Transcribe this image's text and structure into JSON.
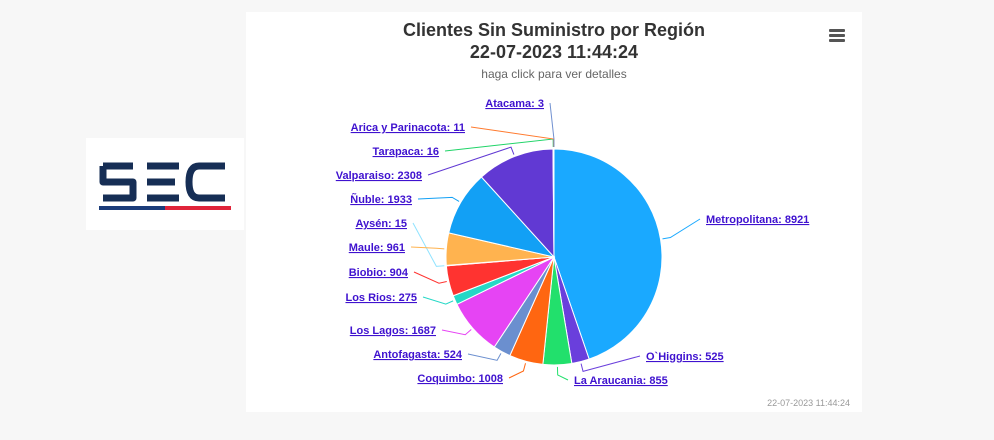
{
  "logo": {
    "text": "SEC"
  },
  "chart_data": {
    "type": "pie",
    "title": "Clientes Sin Suministro por Región",
    "title_line2": "22-07-2023 11:44:24",
    "subtitle": "haga click para ver detalles",
    "footer": "22-07-2023 11:44:24",
    "slices": [
      {
        "label": "Metropolitana",
        "value": 8921,
        "color": "#1aa9ff"
      },
      {
        "label": "O`Higgins",
        "value": 525,
        "color": "#6a3fdc"
      },
      {
        "label": "La Araucania",
        "value": 855,
        "color": "#22e06c"
      },
      {
        "label": "Coquimbo",
        "value": 1008,
        "color": "#ff6611"
      },
      {
        "label": "Antofagasta",
        "value": 524,
        "color": "#6b8fcf"
      },
      {
        "label": "Los Lagos",
        "value": 1687,
        "color": "#e644f4"
      },
      {
        "label": "Los Rios",
        "value": 275,
        "color": "#25d8c6"
      },
      {
        "label": "Biobio",
        "value": 904,
        "color": "#ff3330"
      },
      {
        "label": "Aysén",
        "value": 15,
        "color": "#8fe3ff"
      },
      {
        "label": "Maule",
        "value": 961,
        "color": "#ffb34f"
      },
      {
        "label": "Ñuble",
        "value": 1933,
        "color": "#12a0f5"
      },
      {
        "label": "Valparaiso",
        "value": 2308,
        "color": "#6139d3"
      },
      {
        "label": "Tarapaca",
        "value": 16,
        "color": "#20d468"
      },
      {
        "label": "Arica y Parinacota",
        "value": 11,
        "color": "#ff7a2e"
      },
      {
        "label": "Atacama",
        "value": 3,
        "color": "#7090d0"
      }
    ]
  }
}
